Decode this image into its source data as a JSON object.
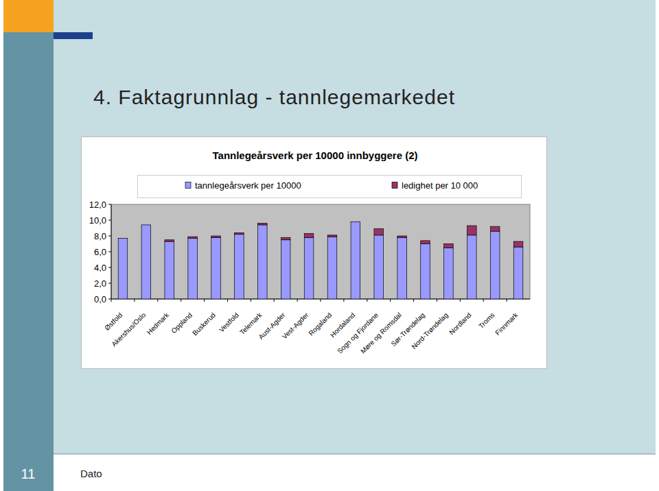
{
  "slide": {
    "title": "4. Faktagrunnlag - tannlegemarkedet",
    "page_number": "11",
    "footer": "Dato"
  },
  "chart_data": {
    "type": "bar",
    "stacked": true,
    "title": "Tannlegeårsverk per 10000 innbyggere (2)",
    "legend": "top",
    "grid": false,
    "categories": [
      "Østfold",
      "Akershus/Oslo",
      "Hedmark",
      "Oppland",
      "Buskerud",
      "Vestfold",
      "Telemark",
      "Aust-Agder",
      "Vest-Agder",
      "Rogaland",
      "Hordaland",
      "Sogn og Fjordane",
      "Møre og Romsdal",
      "Sør-Trøndelag",
      "Nord-Trøndelag",
      "Nordland",
      "Troms",
      "Finnmark"
    ],
    "series": [
      {
        "name": "tannlegeårsverk per 10000",
        "color": "#9999ff",
        "values": [
          7.7,
          9.4,
          7.3,
          7.7,
          7.8,
          8.2,
          9.4,
          7.5,
          7.8,
          7.9,
          9.8,
          8.1,
          7.8,
          7.0,
          6.5,
          8.1,
          8.6,
          6.6
        ]
      },
      {
        "name": "ledighet per 10 000",
        "color": "#993366",
        "values": [
          0,
          0,
          0.2,
          0.2,
          0.2,
          0.2,
          0.2,
          0.3,
          0.5,
          0.2,
          0,
          0.8,
          0.2,
          0.4,
          0.5,
          1.2,
          0.6,
          0.7
        ]
      }
    ],
    "ylim": [
      0,
      12
    ],
    "yticks": [
      {
        "value": 0,
        "label": "0,0"
      },
      {
        "value": 2,
        "label": "2,0"
      },
      {
        "value": 4,
        "label": "4,0"
      },
      {
        "value": 6,
        "label": "6,0"
      },
      {
        "value": 8,
        "label": "8,0"
      },
      {
        "value": 10,
        "label": "10,0"
      },
      {
        "value": 12,
        "label": "12,0"
      }
    ]
  }
}
